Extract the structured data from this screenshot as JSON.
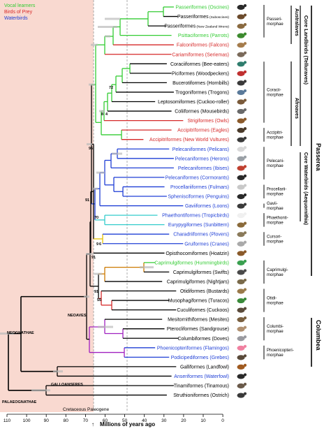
{
  "legend": [
    {
      "label": "Vocal learners",
      "color": "#33cc33"
    },
    {
      "label": "Birds of Prey",
      "color": "#d62828"
    },
    {
      "label": "Waterbirds",
      "color": "#1f3fd6"
    }
  ],
  "taxa": [
    {
      "text": "Passeriformes (Oscines)",
      "color": "#33cc33",
      "small": false
    },
    {
      "text": "Passeriformes",
      "suffix": "(Suboscines)",
      "color": "#000000",
      "small": false
    },
    {
      "text": "Passeriformes",
      "suffix": "(New Zealand Wrens)",
      "color": "#000000",
      "small": false
    },
    {
      "text": "Psittaciformes (Parrots)",
      "color": "#33cc33",
      "small": false
    },
    {
      "text": "Falconiformes (Falcons)",
      "color": "#d62828",
      "small": false
    },
    {
      "text": "Cariamiformes (Seriemas)",
      "color": "#d62828",
      "small": false
    },
    {
      "text": "Coraciiformes (Bee-eaters)",
      "color": "#000000",
      "small": false
    },
    {
      "text": "Piciformes (Woodpeckers)",
      "color": "#000000",
      "small": false
    },
    {
      "text": "Bucerotiformes (Hornbills)",
      "color": "#000000",
      "small": false
    },
    {
      "text": "Trogoniformes (Trogons)",
      "color": "#000000",
      "small": false
    },
    {
      "text": "Leptosomiformes (Cuckoo-roller)",
      "color": "#000000",
      "small": false
    },
    {
      "text": "Coliiformes (Mousebirds)",
      "color": "#000000",
      "small": false
    },
    {
      "text": "Strigiformes (Owls)",
      "color": "#d62828",
      "small": false
    },
    {
      "text": "Accipitriformes (Eagles)",
      "color": "#d62828",
      "small": false
    },
    {
      "text": "Accipitriformes (New World Vultures)",
      "color": "#d62828",
      "small": false
    },
    {
      "text": "Pelecaniformes (Pelicans)",
      "color": "#1f3fd6",
      "small": false
    },
    {
      "text": "Pelecaniformes (Herons)",
      "color": "#1f3fd6",
      "small": false
    },
    {
      "text": "Pelecaniformes (Ibises)",
      "color": "#1f3fd6",
      "small": false
    },
    {
      "text": "Pelecaniformes (Cormorants)",
      "color": "#1f3fd6",
      "small": false
    },
    {
      "text": "Procellariiformes (Fulmars)",
      "color": "#1f3fd6",
      "small": false
    },
    {
      "text": "Sphenisciformes (Penguins)",
      "color": "#1f3fd6",
      "small": false
    },
    {
      "text": "Gaviiformes (Loons)",
      "color": "#1f3fd6",
      "small": false
    },
    {
      "text": "Phaethontiformes (Tropicbirds)",
      "color": "#1f3fd6",
      "small": false
    },
    {
      "text": "Eurypygiformes (Sunbittern)",
      "color": "#1f3fd6",
      "small": false
    },
    {
      "text": "Charadriiformes (Plovers)",
      "color": "#1f3fd6",
      "small": false
    },
    {
      "text": "Gruiformes (Cranes)",
      "color": "#1f3fd6",
      "small": false
    },
    {
      "text": "Opisthocomiformes (Hoatzin)",
      "color": "#000000",
      "small": false
    },
    {
      "text": "Caprimulgiformes (Hummingbirds)",
      "color": "#33cc33",
      "small": false
    },
    {
      "text": "Caprimulgiformes (Swifts)",
      "color": "#000000",
      "small": false
    },
    {
      "text": "Caprimulgiformes (Nightjars)",
      "color": "#000000",
      "small": false
    },
    {
      "text": "Otidiformes (Bustards)",
      "color": "#000000",
      "small": false
    },
    {
      "text": "Musophagiformes (Turacos)",
      "color": "#000000",
      "small": false
    },
    {
      "text": "Cuculiformes (Cuckoos)",
      "color": "#000000",
      "small": false
    },
    {
      "text": "Mesitornithiformes (Mesites)",
      "color": "#000000",
      "small": false
    },
    {
      "text": "Pterocliformes (Sandgrouse)",
      "color": "#000000",
      "small": false
    },
    {
      "text": "Columbiformes (Doves)",
      "color": "#000000",
      "small": false
    },
    {
      "text": "Phoenicopteriformes (Flamingos)",
      "color": "#1f3fd6",
      "small": false
    },
    {
      "text": "Podicipediformes (Grebes)",
      "color": "#1f3fd6",
      "small": false
    },
    {
      "text": "Galliformes (Landfowl)",
      "color": "#000000",
      "small": false
    },
    {
      "text": "Anseriformes (Waterfowl)",
      "color": "#1f3fd6",
      "small": false
    },
    {
      "text": "Tinamiformes (Tinamous)",
      "color": "#000000",
      "small": false
    },
    {
      "text": "Struthioniformes (Ostrich)",
      "color": "#000000",
      "small": false
    }
  ],
  "clades": [
    {
      "lines": [
        "Passeri-",
        "morphae"
      ]
    },
    {
      "lines": [
        "Coracii-",
        "morphae"
      ]
    },
    {
      "lines": [
        "Accipitri-",
        "morphae"
      ]
    },
    {
      "lines": [
        "Pelecani-",
        "morphae"
      ]
    },
    {
      "lines": [
        "Procellarii-",
        "morphae"
      ]
    },
    {
      "lines": [
        "Gavii-",
        "morphae"
      ]
    },
    {
      "lines": [
        "Phaethonti-",
        "morphae"
      ]
    },
    {
      "lines": [
        "Cursori-",
        "morphae"
      ]
    },
    {
      "lines": [
        "Caprimulgi-",
        "morphae"
      ]
    },
    {
      "lines": [
        "Otidi-",
        "morphae"
      ]
    },
    {
      "lines": [
        "Columbi-",
        "morphae"
      ]
    },
    {
      "lines": [
        "Phoenicopteri-",
        "morphae"
      ]
    }
  ],
  "vertical_labels": {
    "australaves": "Australaves",
    "afroaves": "Afroaves",
    "core_landbirds": "Core Landbirds (Telluraves)",
    "passerea": "Passerea",
    "core_waterbirds": "Core Waterbirds (Aequornithia)",
    "columbea": "Columbea"
  },
  "node_support": [
    "72",
    "8",
    "4",
    "96",
    "91",
    "70",
    "9",
    "6",
    "91",
    "91",
    "55"
  ],
  "group_labels": {
    "neoaves": "NEOAVES",
    "neognathae": "NEOGNATHAE",
    "galloanseres": "GALLOANSERES",
    "palaeognathae": "PALAEOGNATHAE"
  },
  "axis": {
    "period_label": "Cretaceous Paleogene",
    "ticks": [
      "110",
      "100",
      "90",
      "80",
      "70",
      "60",
      "50",
      "40",
      "30",
      "20",
      "10",
      "0"
    ],
    "title": "Millions of years ago"
  }
}
